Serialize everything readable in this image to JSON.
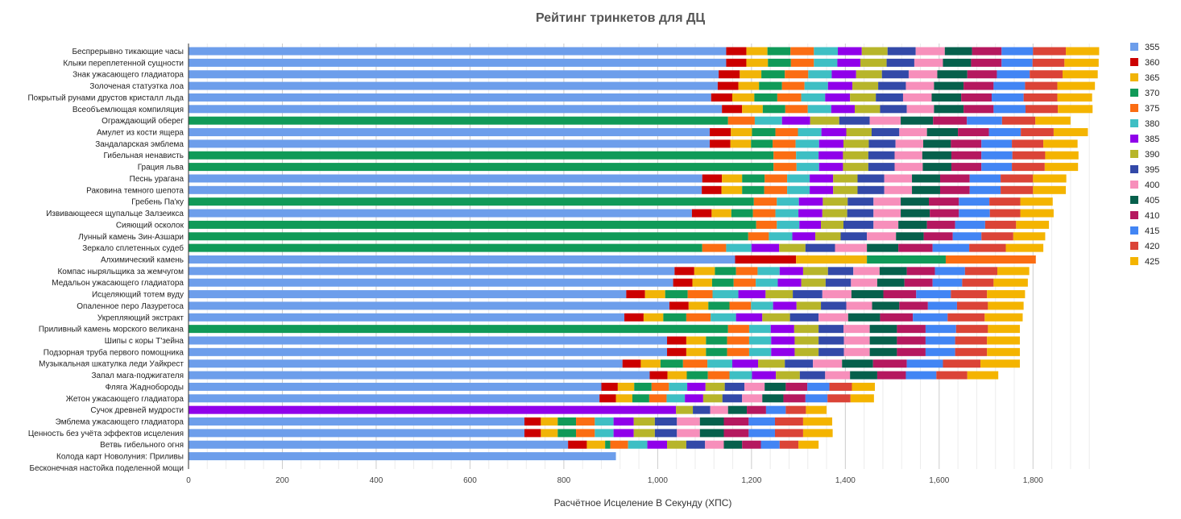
{
  "chart_data": {
    "type": "bar",
    "orientation": "horizontal",
    "stacked": true,
    "title": "Рейтинг тринкетов для ДЦ",
    "xlabel": "Расчётное Исцеление В Секунду (ХПС)",
    "ylabel": "",
    "xlim": [
      0,
      1930
    ],
    "x_ticks": [
      0,
      200,
      400,
      600,
      800,
      1000,
      1200,
      1400,
      1600,
      1800
    ],
    "x_tick_labels": [
      "0",
      "200",
      "400",
      "600",
      "800",
      "1,000",
      "1,200",
      "1,400",
      "1,600",
      "1,800"
    ],
    "grid": true,
    "legend_position": "right",
    "series": [
      {
        "name": "355",
        "color": "#6d9eeb"
      },
      {
        "name": "360",
        "color": "#cc0000"
      },
      {
        "name": "365",
        "color": "#f1b407"
      },
      {
        "name": "370",
        "color": "#109a58"
      },
      {
        "name": "375",
        "color": "#fb6d13"
      },
      {
        "name": "380",
        "color": "#3ebfc4"
      },
      {
        "name": "385",
        "color": "#9000ea"
      },
      {
        "name": "390",
        "color": "#b7b52a"
      },
      {
        "name": "395",
        "color": "#3349a8"
      },
      {
        "name": "400",
        "color": "#f78fbb"
      },
      {
        "name": "405",
        "color": "#06604c"
      },
      {
        "name": "410",
        "color": "#b5185f"
      },
      {
        "name": "415",
        "color": "#4285f4"
      },
      {
        "name": "420",
        "color": "#db4437"
      },
      {
        "name": "425",
        "color": "#f4b400"
      }
    ],
    "rows": [
      {
        "label": "Беспрерывно тикающие часы",
        "start_series": 0,
        "values": [
          1146,
          1189,
          1234,
          1283,
          1333,
          1384,
          1435,
          1490,
          1550,
          1612,
          1670,
          1733,
          1800,
          1870,
          1941
        ]
      },
      {
        "label": "Клыки переплетенной сущности",
        "start_series": 0,
        "values": [
          1146,
          1189,
          1235,
          1284,
          1333,
          1383,
          1432,
          1488,
          1547,
          1608,
          1668,
          1733,
          1799,
          1867,
          1940
        ]
      },
      {
        "label": "Знак ужасающего гладиатора",
        "start_series": 0,
        "values": [
          1130,
          1175,
          1221,
          1271,
          1321,
          1371,
          1423,
          1478,
          1535,
          1596,
          1660,
          1723,
          1793,
          1863,
          1938
        ]
      },
      {
        "label": "Золоченая статуэтка лоа",
        "start_series": 0,
        "values": [
          1128,
          1172,
          1216,
          1265,
          1313,
          1363,
          1415,
          1470,
          1529,
          1589,
          1652,
          1716,
          1783,
          1852,
          1932
        ]
      },
      {
        "label": "Покрытый рунами друстов кристалл льда",
        "start_series": 0,
        "values": [
          1114,
          1159,
          1206,
          1255,
          1306,
          1357,
          1410,
          1465,
          1523,
          1584,
          1647,
          1712,
          1780,
          1852,
          1926
        ]
      },
      {
        "label": "Всеобъемлющая компиляция",
        "start_series": 0,
        "values": [
          1137,
          1180,
          1224,
          1272,
          1320,
          1370,
          1420,
          1474,
          1531,
          1589,
          1652,
          1716,
          1784,
          1853,
          1927
        ]
      },
      {
        "label": "Ограждающий оберег",
        "start_series": 3,
        "values": [
          1150,
          1207,
          1265,
          1325,
          1387,
          1452,
          1518,
          1587,
          1659,
          1734,
          1805,
          1880
        ]
      },
      {
        "label": "Амулет из кости ящера",
        "start_series": 0,
        "values": [
          1111,
          1156,
          1201,
          1251,
          1299,
          1349,
          1402,
          1456,
          1515,
          1574,
          1640,
          1706,
          1774,
          1844,
          1917
        ]
      },
      {
        "label": "Зандаларская эмблема",
        "start_series": 0,
        "values": [
          1111,
          1155,
          1199,
          1245,
          1294,
          1344,
          1396,
          1450,
          1507,
          1566,
          1625,
          1690,
          1755,
          1822,
          1895
        ]
      },
      {
        "label": "Гибельная ненависть",
        "start_series": 3,
        "values": [
          1247,
          1295,
          1343,
          1395,
          1449,
          1505,
          1564,
          1626,
          1690,
          1756,
          1826,
          1897
        ]
      },
      {
        "label": "Грация льва",
        "start_series": 3,
        "values": [
          1247,
          1296,
          1344,
          1395,
          1449,
          1505,
          1565,
          1626,
          1690,
          1755,
          1825,
          1896
        ]
      },
      {
        "label": "Песнь урагана",
        "start_series": 0,
        "values": [
          1095,
          1137,
          1180,
          1228,
          1276,
          1324,
          1374,
          1426,
          1483,
          1542,
          1602,
          1665,
          1731,
          1800,
          1871
        ]
      },
      {
        "label": "Раковина темного шепота",
        "start_series": 0,
        "values": [
          1094,
          1136,
          1180,
          1227,
          1276,
          1324,
          1374,
          1426,
          1483,
          1542,
          1602,
          1665,
          1731,
          1800,
          1870
        ]
      },
      {
        "label": "Гребень Па'ку",
        "start_series": 3,
        "values": [
          1205,
          1254,
          1301,
          1352,
          1405,
          1460,
          1518,
          1578,
          1642,
          1707,
          1773,
          1842
        ]
      },
      {
        "label": "Извивающееся щупальце Залзеикса",
        "start_series": 0,
        "values": [
          1073,
          1115,
          1157,
          1203,
          1251,
          1300,
          1351,
          1404,
          1460,
          1518,
          1580,
          1642,
          1708,
          1773,
          1844
        ]
      },
      {
        "label": "Сияющий осколок",
        "start_series": 3,
        "values": [
          1210,
          1254,
          1302,
          1348,
          1396,
          1460,
          1513,
          1574,
          1634,
          1698,
          1764,
          1834
        ]
      },
      {
        "label": "Лунный камень Зин-Азшари",
        "start_series": 3,
        "values": [
          1193,
          1237,
          1287,
          1336,
          1390,
          1446,
          1508,
          1567,
          1629,
          1690,
          1758,
          1826
        ]
      },
      {
        "label": "Зеркало сплетенных судеб",
        "start_series": 3,
        "values": [
          1095,
          1146,
          1200,
          1259,
          1315,
          1378,
          1446,
          1513,
          1586,
          1664,
          1742,
          1822
        ]
      },
      {
        "label": "Алхимический камень",
        "start_series": 0,
        "values": [
          1165,
          1295,
          1446,
          1614,
          1806
        ]
      },
      {
        "label": "Компас ныряльщика за жемчугом",
        "start_series": 0,
        "values": [
          1036,
          1078,
          1122,
          1167,
          1213,
          1260,
          1310,
          1363,
          1417,
          1473,
          1531,
          1591,
          1655,
          1724,
          1792
        ]
      },
      {
        "label": "Медальон ужасающего гладиатора",
        "start_series": 0,
        "values": [
          1033,
          1074,
          1116,
          1162,
          1209,
          1256,
          1306,
          1358,
          1412,
          1468,
          1526,
          1586,
          1649,
          1716,
          1789
        ]
      },
      {
        "label": "Исцеляющий тотем вуду",
        "start_series": 0,
        "values": [
          933,
          973,
          1016,
          1064,
          1117,
          1172,
          1230,
          1288,
          1351,
          1413,
          1481,
          1551,
          1625,
          1702,
          1783
        ]
      },
      {
        "label": "Опаленное перо Лазуретоса",
        "start_series": 0,
        "values": [
          1025,
          1066,
          1108,
          1153,
          1199,
          1246,
          1296,
          1348,
          1402,
          1457,
          1515,
          1576,
          1638,
          1704,
          1780
        ]
      },
      {
        "label": "Укрепляющий экстракт",
        "start_series": 0,
        "values": [
          929,
          970,
          1012,
          1061,
          1113,
          1167,
          1223,
          1282,
          1343,
          1406,
          1474,
          1544,
          1618,
          1697,
          1778
        ]
      },
      {
        "label": "Приливный камень морского великана",
        "start_series": 3,
        "values": [
          1150,
          1195,
          1241,
          1291,
          1343,
          1396,
          1452,
          1510,
          1571,
          1636,
          1704,
          1772
        ]
      },
      {
        "label": "Шипы с коры Т'зейна",
        "start_series": 0,
        "values": [
          1020,
          1061,
          1103,
          1148,
          1195,
          1242,
          1292,
          1343,
          1397,
          1452,
          1510,
          1571,
          1634,
          1702,
          1772
        ]
      },
      {
        "label": "Подзорная труба первого помощника",
        "start_series": 0,
        "values": [
          1020,
          1061,
          1103,
          1148,
          1195,
          1242,
          1292,
          1343,
          1397,
          1452,
          1510,
          1571,
          1634,
          1702,
          1772
        ]
      },
      {
        "label": "Музыкальная шкатулка леди Уайкрест",
        "start_series": 0,
        "values": [
          925,
          964,
          1006,
          1054,
          1106,
          1159,
          1214,
          1271,
          1331,
          1393,
          1459,
          1531,
          1608,
          1688,
          1772
        ]
      },
      {
        "label": "Запал мага-поджигателя",
        "start_series": 0,
        "values": [
          983,
          1021,
          1062,
          1107,
          1153,
          1201,
          1252,
          1303,
          1357,
          1410,
          1468,
          1529,
          1594,
          1660,
          1726
        ]
      },
      {
        "label": "Фляга Жаднобороды",
        "start_series": 0,
        "values": [
          880,
          915,
          950,
          987,
          1024,
          1063,
          1102,
          1143,
          1185,
          1228,
          1273,
          1319,
          1366,
          1414,
          1463
        ]
      },
      {
        "label": "Жетон ужасающего гладиатора",
        "start_series": 0,
        "values": [
          876,
          911,
          946,
          982,
          1019,
          1058,
          1097,
          1138,
          1180,
          1223,
          1268,
          1315,
          1362,
          1411,
          1461
        ]
      },
      {
        "label": "Сучок древней мудрости",
        "start_series": 6,
        "values": [
          1039,
          1075,
          1112,
          1150,
          1190,
          1231,
          1273,
          1316,
          1360
        ]
      },
      {
        "label": "Эмблема ужасающего гладиатора",
        "start_series": 0,
        "values": [
          716,
          751,
          787,
          826,
          866,
          906,
          949,
          994,
          1041,
          1090,
          1141,
          1194,
          1250,
          1310,
          1372
        ]
      },
      {
        "label": "Ценность без учёта эффектов исцеления",
        "start_series": 0,
        "values": [
          716,
          751,
          787,
          826,
          866,
          906,
          949,
          994,
          1041,
          1090,
          1141,
          1194,
          1250,
          1310,
          1373
        ]
      },
      {
        "label": "Ветвь гибельного огня",
        "start_series": 0,
        "values": [
          809,
          849,
          888,
          899,
          937,
          978,
          1020,
          1061,
          1101,
          1141,
          1180,
          1220,
          1260,
          1300,
          1343
        ]
      },
      {
        "label": "Колода карт Новолуния: Приливы",
        "start_series": 0,
        "values": [
          911
        ]
      },
      {
        "label": "Бесконечная настойка поделенной мощи",
        "start_series": 0,
        "values": []
      }
    ]
  }
}
